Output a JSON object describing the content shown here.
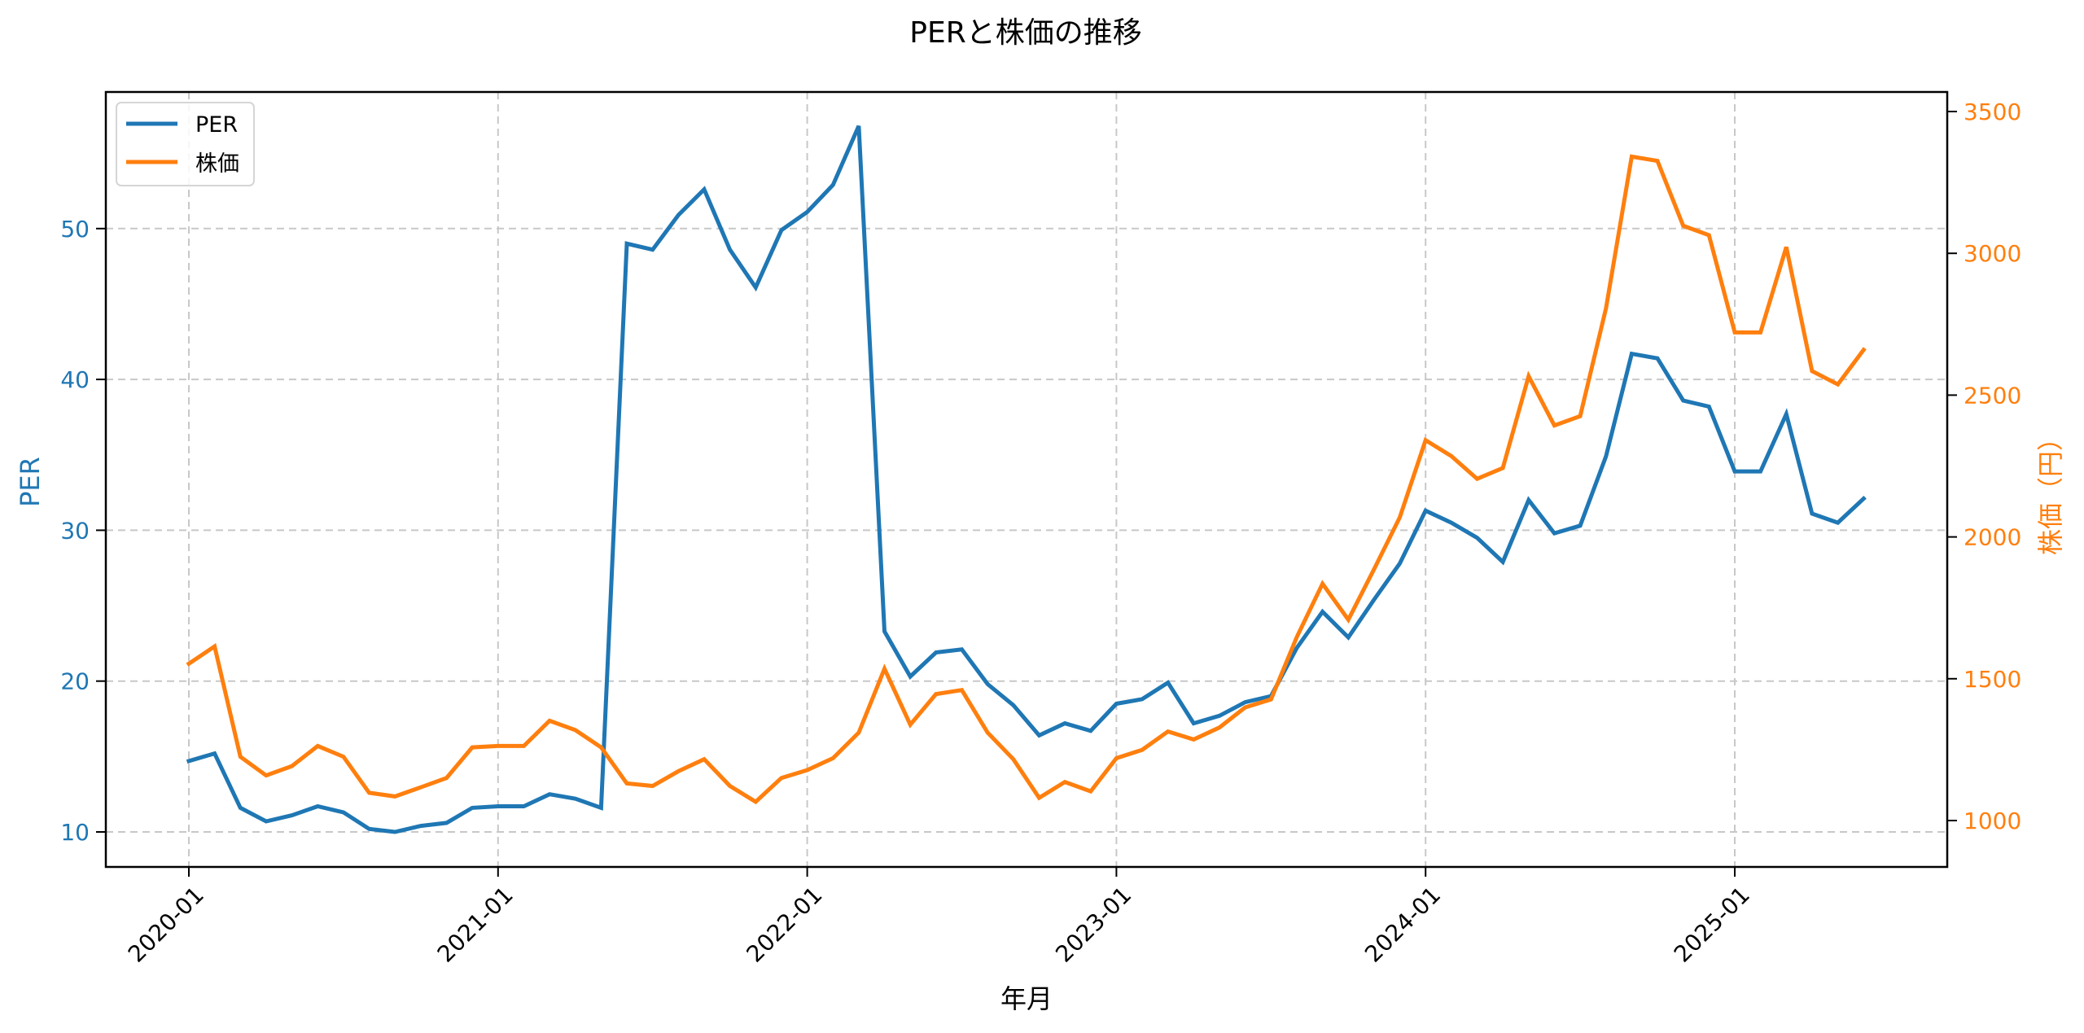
{
  "chart_data": {
    "type": "line",
    "title": "PERと株価の推移",
    "xlabel": "年月",
    "ylabel_left": "PER",
    "ylabel_right": "株価（円）",
    "x_tick_labels": [
      "2020-01",
      "2021-01",
      "2022-01",
      "2023-01",
      "2024-01",
      "2025-01"
    ],
    "y_left_ticks": [
      10,
      20,
      30,
      40,
      50
    ],
    "y_right_ticks": [
      1000,
      1500,
      2000,
      2500,
      3000,
      3500
    ],
    "y_left_lim": [
      7.7,
      59.0
    ],
    "y_right_lim": [
      835,
      3600
    ],
    "grid": true,
    "legend_position": "upper left",
    "x": [
      "2020-01",
      "2020-02",
      "2020-03",
      "2020-04",
      "2020-05",
      "2020-06",
      "2020-07",
      "2020-08",
      "2020-09",
      "2020-10",
      "2020-11",
      "2020-12",
      "2021-01",
      "2021-02",
      "2021-03",
      "2021-04",
      "2021-05",
      "2021-06",
      "2021-07",
      "2021-08",
      "2021-09",
      "2021-10",
      "2021-11",
      "2021-12",
      "2022-01",
      "2022-02",
      "2022-03",
      "2022-04",
      "2022-05",
      "2022-06",
      "2022-07",
      "2022-08",
      "2022-09",
      "2022-10",
      "2022-11",
      "2022-12",
      "2023-01",
      "2023-02",
      "2023-03",
      "2023-04",
      "2023-05",
      "2023-06",
      "2023-07",
      "2023-08",
      "2023-09",
      "2023-10",
      "2023-11",
      "2023-12",
      "2024-01",
      "2024-02",
      "2024-03",
      "2024-04",
      "2024-05",
      "2024-06",
      "2024-07",
      "2024-08",
      "2024-09",
      "2024-10",
      "2024-11",
      "2024-12",
      "2025-01",
      "2025-02",
      "2025-03",
      "2025-04",
      "2025-05",
      "2025-06"
    ],
    "series": [
      {
        "name": "PER",
        "axis": "left",
        "color": "#1f77b4",
        "values": [
          14.7,
          15.2,
          11.6,
          10.7,
          11.1,
          11.7,
          11.3,
          10.2,
          10.0,
          10.4,
          10.6,
          11.6,
          11.7,
          11.7,
          12.5,
          12.2,
          11.6,
          49.0,
          48.6,
          50.9,
          52.6,
          48.6,
          46.1,
          49.9,
          51.1,
          52.9,
          56.8,
          23.3,
          20.3,
          21.9,
          22.1,
          19.8,
          18.4,
          16.4,
          17.2,
          16.7,
          18.5,
          18.8,
          19.9,
          17.2,
          17.7,
          18.6,
          19.0,
          22.2,
          24.6,
          22.9,
          25.4,
          27.8,
          31.3,
          30.5,
          29.5,
          27.9,
          32.0,
          29.8,
          30.3,
          34.9,
          41.7,
          41.4,
          38.6,
          38.2,
          33.9,
          33.9,
          37.7,
          31.1,
          30.5,
          32.1
        ]
      },
      {
        "name": "株価",
        "axis": "right",
        "color": "#ff7f0e",
        "values": [
          1553,
          1614,
          1225,
          1159,
          1192,
          1263,
          1225,
          1098,
          1085,
          1117,
          1150,
          1258,
          1263,
          1263,
          1352,
          1319,
          1258,
          1131,
          1122,
          1174,
          1216,
          1122,
          1066,
          1150,
          1178,
          1220,
          1310,
          1535,
          1338,
          1446,
          1460,
          1310,
          1216,
          1080,
          1136,
          1103,
          1220,
          1249,
          1314,
          1286,
          1328,
          1399,
          1427,
          1647,
          1835,
          1708,
          1886,
          2069,
          2341,
          2285,
          2205,
          2243,
          2567,
          2393,
          2426,
          2806,
          3341,
          3326,
          3097,
          3064,
          2721,
          2721,
          3022,
          2585,
          2538,
          2660
        ]
      }
    ]
  },
  "legend": {
    "items": [
      {
        "label": "PER",
        "color": "#1f77b4"
      },
      {
        "label": "株価",
        "color": "#ff7f0e"
      }
    ]
  },
  "colors": {
    "per": "#1f77b4",
    "price": "#ff7f0e",
    "grid": "#c8c8c8",
    "axis": "#000000"
  }
}
